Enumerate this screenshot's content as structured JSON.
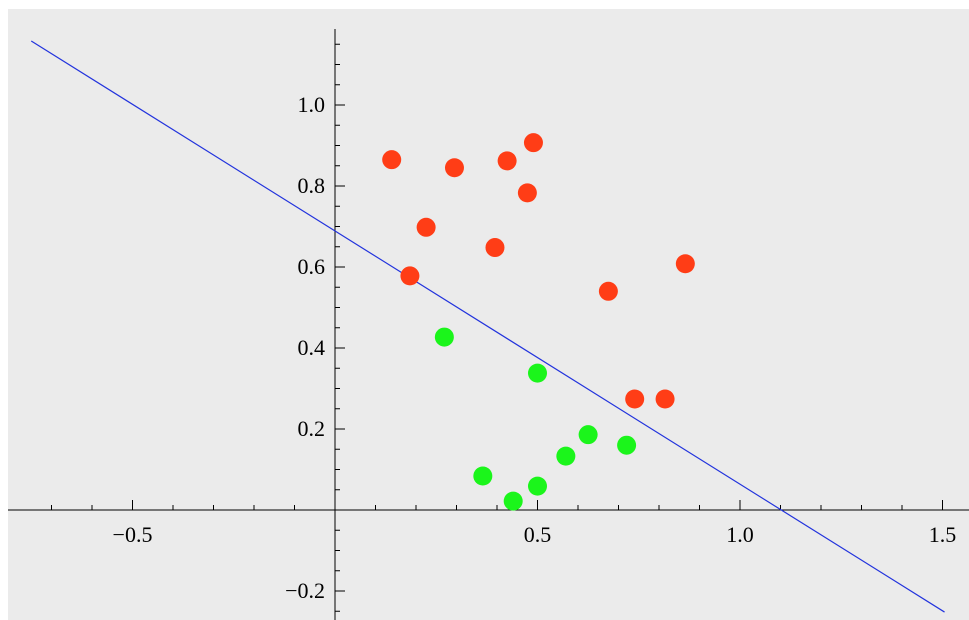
{
  "chart_data": {
    "type": "scatter",
    "xlim": [
      -0.8,
      1.55
    ],
    "ylim": [
      -0.29,
      1.16
    ],
    "x_ticks": [
      {
        "value": -0.5,
        "label": "−0.5"
      },
      {
        "value": 0.5,
        "label": "0.5"
      },
      {
        "value": 1.0,
        "label": "1.0"
      },
      {
        "value": 1.5,
        "label": "1.5"
      }
    ],
    "y_ticks": [
      {
        "value": -0.2,
        "label": "−0.2"
      },
      {
        "value": 0.2,
        "label": "0.2"
      },
      {
        "value": 0.4,
        "label": "0.4"
      },
      {
        "value": 0.6,
        "label": "0.6"
      },
      {
        "value": 0.8,
        "label": "0.8"
      },
      {
        "value": 1.0,
        "label": "1.0"
      }
    ],
    "grid": false,
    "background_color": "#ebebeb",
    "series": [
      {
        "color": "#ff3d16",
        "points": [
          [
            0.14,
            0.865
          ],
          [
            0.295,
            0.845
          ],
          [
            0.425,
            0.862
          ],
          [
            0.49,
            0.907
          ],
          [
            0.475,
            0.783
          ],
          [
            0.225,
            0.698
          ],
          [
            0.395,
            0.648
          ],
          [
            0.185,
            0.578
          ],
          [
            0.675,
            0.54
          ],
          [
            0.865,
            0.608
          ],
          [
            0.74,
            0.274
          ],
          [
            0.815,
            0.274
          ]
        ]
      },
      {
        "color": "#1bf51b",
        "points": [
          [
            0.27,
            0.427
          ],
          [
            0.5,
            0.338
          ],
          [
            0.625,
            0.186
          ],
          [
            0.72,
            0.16
          ],
          [
            0.57,
            0.133
          ],
          [
            0.365,
            0.084
          ],
          [
            0.5,
            0.059
          ],
          [
            0.44,
            0.022
          ]
        ]
      }
    ],
    "line": {
      "color": "#2233dd",
      "points": [
        [
          -0.75,
          1.158
        ],
        [
          1.505,
          -0.252
        ]
      ]
    }
  }
}
